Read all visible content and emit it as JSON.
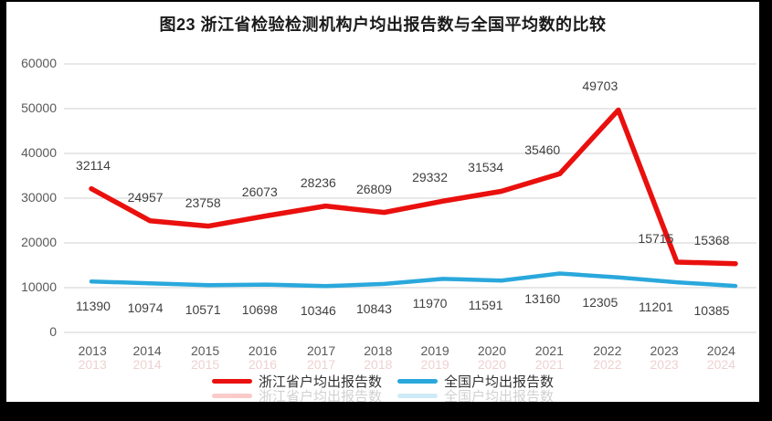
{
  "window": {
    "frame_color": "#000000",
    "background": "#ffffff"
  },
  "chart_data": {
    "type": "line",
    "title": "图23  浙江省检验检测机构户均出报告数与全国平均数的比较",
    "categories": [
      "2013",
      "2014",
      "2015",
      "2016",
      "2017",
      "2018",
      "2019",
      "2020",
      "2021",
      "2022",
      "2023",
      "2024"
    ],
    "series": [
      {
        "name": "浙江省户均出报告数",
        "color": "#e9100e",
        "values": [
          32114,
          24957,
          23758,
          26073,
          28236,
          26809,
          29332,
          31534,
          35460,
          49703,
          15715,
          15368
        ]
      },
      {
        "name": "全国户均出报告数",
        "color": "#2aa8dc",
        "values": [
          11390,
          10974,
          10571,
          10698,
          10346,
          10843,
          11970,
          11591,
          13160,
          12305,
          11201,
          10385
        ]
      }
    ],
    "ylim": [
      0,
      60000
    ],
    "ytick_labels": [
      "0",
      "10000",
      "20000",
      "30000",
      "40000",
      "50000",
      "60000"
    ],
    "grid": true,
    "legend_position": "bottom",
    "data_labels_shown": true
  },
  "colors": {
    "gridline": "#d9d9d9",
    "axis_text": "#595959",
    "data_label_text": "#3f3f3f"
  }
}
